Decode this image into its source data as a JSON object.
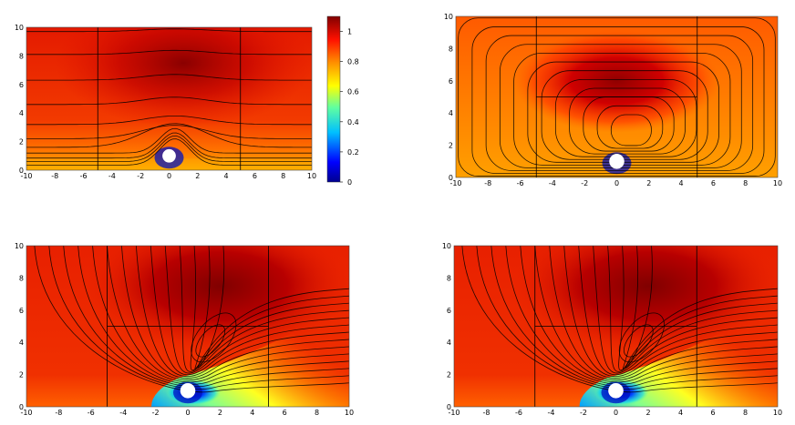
{
  "chart_data": [
    {
      "type": "heatmap",
      "title": "",
      "xlabel": "",
      "ylabel": "",
      "xlim": [
        -10,
        10
      ],
      "ylim": [
        0,
        10
      ],
      "xticks": [
        -10,
        -8,
        -6,
        -4,
        -2,
        0,
        2,
        4,
        6,
        8,
        10
      ],
      "yticks": [
        0,
        2,
        4,
        6,
        8,
        10
      ],
      "gridlines_x": [
        -5,
        5
      ],
      "gridlines_y": [],
      "obstacle": {
        "x": 0,
        "y": 1
      },
      "overlay": "streamlines",
      "colorbar": {
        "min": 0,
        "max": 1.1,
        "ticks": [
          0,
          0.2,
          0.4,
          0.6,
          0.8,
          1
        ]
      }
    },
    {
      "type": "heatmap",
      "title": "",
      "xlabel": "",
      "ylabel": "",
      "xlim": [
        -10,
        10
      ],
      "ylim": [
        0,
        10
      ],
      "xticks": [
        -10,
        -8,
        -6,
        -4,
        -2,
        0,
        2,
        4,
        6,
        8,
        10
      ],
      "yticks": [
        0,
        2,
        4,
        6,
        8,
        10
      ],
      "gridlines_x": [
        -5,
        5
      ],
      "gridlines_y": [
        5
      ],
      "obstacle": {
        "x": 0,
        "y": 1
      },
      "overlay": "closed-streamlines"
    },
    {
      "type": "heatmap",
      "title": "",
      "xlabel": "",
      "ylabel": "",
      "xlim": [
        -10,
        10
      ],
      "ylim": [
        0,
        10
      ],
      "xticks": [
        -10,
        -8,
        -6,
        -4,
        -2,
        0,
        2,
        4,
        6,
        8,
        10
      ],
      "yticks": [
        0,
        2,
        4,
        6,
        8,
        10
      ],
      "gridlines_x": [
        -5,
        5
      ],
      "gridlines_y": [
        5
      ],
      "obstacle": {
        "x": 0,
        "y": 1
      },
      "overlay": "streamlines"
    },
    {
      "type": "heatmap",
      "title": "",
      "xlabel": "",
      "ylabel": "",
      "xlim": [
        -10,
        10
      ],
      "ylim": [
        0,
        10
      ],
      "xticks": [
        -10,
        -8,
        -6,
        -4,
        -2,
        0,
        2,
        4,
        6,
        8,
        10
      ],
      "yticks": [
        0,
        2,
        4,
        6,
        8,
        10
      ],
      "gridlines_x": [
        -5,
        5
      ],
      "gridlines_y": [
        5
      ],
      "obstacle": {
        "x": 0,
        "y": 1
      },
      "overlay": "streamlines"
    }
  ]
}
